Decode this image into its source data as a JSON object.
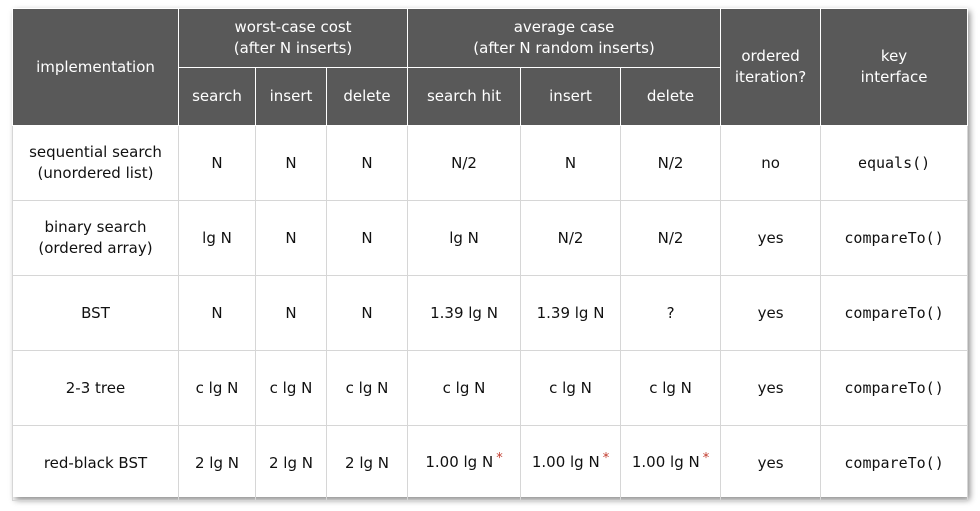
{
  "headers": {
    "implementation": "implementation",
    "worst_case": [
      "worst-case cost",
      "(after N inserts)"
    ],
    "average_case": [
      "average case",
      "(after N random inserts)"
    ],
    "ordered_iteration": [
      "ordered",
      "iteration?"
    ],
    "key_interface": [
      "key",
      "interface"
    ],
    "sub": [
      "search",
      "insert",
      "delete",
      "search hit",
      "insert",
      "delete"
    ]
  },
  "rows": [
    {
      "impl": [
        "sequential search",
        "(unordered list)"
      ],
      "cells": [
        "N",
        "N",
        "N",
        "N/2",
        "N",
        "N/2"
      ],
      "starred": [
        false,
        false,
        false
      ],
      "ordered": "no",
      "key": "equals()"
    },
    {
      "impl": [
        "binary search",
        "(ordered array)"
      ],
      "cells": [
        "lg N",
        "N",
        "N",
        "lg N",
        "N/2",
        "N/2"
      ],
      "starred": [
        false,
        false,
        false
      ],
      "ordered": "yes",
      "key": "compareTo()"
    },
    {
      "impl": [
        "BST",
        ""
      ],
      "cells": [
        "N",
        "N",
        "N",
        "1.39 lg N",
        "1.39 lg N",
        "?"
      ],
      "starred": [
        false,
        false,
        false
      ],
      "ordered": "yes",
      "key": "compareTo()"
    },
    {
      "impl": [
        "2-3 tree",
        ""
      ],
      "cells": [
        "c lg N",
        "c lg N",
        "c lg N",
        "c lg N",
        "c lg N",
        "c lg N"
      ],
      "starred": [
        false,
        false,
        false
      ],
      "ordered": "yes",
      "key": "compareTo()"
    },
    {
      "impl": [
        "red-black BST",
        ""
      ],
      "cells": [
        "2 lg N",
        "2 lg N",
        "2 lg N",
        "1.00 lg N",
        "1.00 lg N",
        "1.00 lg N"
      ],
      "starred": [
        true,
        true,
        true
      ],
      "ordered": "yes",
      "key": "compareTo()"
    }
  ],
  "star_symbol": "*"
}
